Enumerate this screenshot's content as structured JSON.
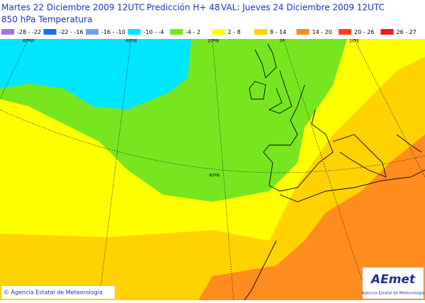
{
  "header": {
    "run": "Martes 22 Diciembre 2009 12UTC",
    "forecast": "Predicción H+ 48",
    "valid": "VAL: Jueves 24 Diciembre 2009 12UTC",
    "field": "850 hPa Temperatura"
  },
  "legend": [
    {
      "label": "-28 - -22",
      "color": "#9a7ae0"
    },
    {
      "label": "-22 - -16",
      "color": "#1e6ee8"
    },
    {
      "label": "-16 - -10",
      "color": "#78a0f0"
    },
    {
      "label": "-10 - -4",
      "color": "#00e6ff"
    },
    {
      "label": "-4 - 2",
      "color": "#78e61e"
    },
    {
      "label": "2 - 8",
      "color": "#ffff00"
    },
    {
      "label": "8 - 14",
      "color": "#ffd200"
    },
    {
      "label": "14 - 20",
      "color": "#ff8c1e"
    },
    {
      "label": "20 - 26",
      "color": "#ff3c1e"
    },
    {
      "label": "26 - 27",
      "color": "#e61e1e"
    }
  ],
  "graticule": {
    "lon60w": "60ºW",
    "lon40w": "40ºW",
    "lon20w": "20ºW",
    "lon0": "0º",
    "lon20e": "20ºE",
    "lat40n": "40ºN"
  },
  "footer": {
    "copyright": "© Agencia Estatal de Meteorología",
    "logo": "AEmet",
    "logo_caption": "Agencia Estatal de Meteorología"
  }
}
